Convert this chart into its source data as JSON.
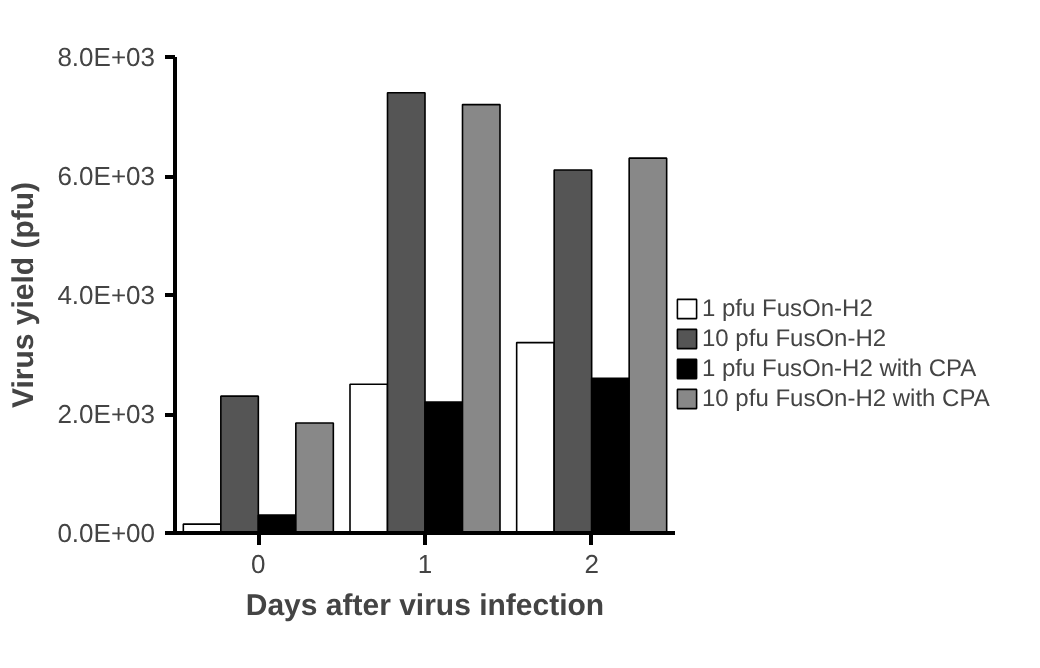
{
  "chart_data": {
    "type": "bar",
    "xlabel": "Days after virus infection",
    "ylabel": "Virus yield (pfu)",
    "categories": [
      "0",
      "1",
      "2"
    ],
    "series": [
      {
        "name": "1 pfu FusOn-H2",
        "color": "#ffffff",
        "values": [
          150,
          2500,
          3200
        ]
      },
      {
        "name": "10 pfu FusOn-H2",
        "color": "#555555",
        "values": [
          2300,
          7400,
          6100
        ]
      },
      {
        "name": "1 pfu FusOn-H2 with CPA",
        "color": "#000000",
        "values": [
          300,
          2200,
          2600
        ]
      },
      {
        "name": "10 pfu FusOn-H2 with CPA",
        "color": "#888888",
        "values": [
          1850,
          7200,
          6300
        ]
      }
    ],
    "ylim": [
      0,
      8000
    ],
    "yticks": [
      {
        "value": 0,
        "label": "0.0E+00"
      },
      {
        "value": 2000,
        "label": "2.0E+03"
      },
      {
        "value": 4000,
        "label": "4.0E+03"
      },
      {
        "value": 6000,
        "label": "6.0E+03"
      },
      {
        "value": 8000,
        "label": "8.0E+03"
      }
    ],
    "grid": false,
    "legend": "right"
  }
}
